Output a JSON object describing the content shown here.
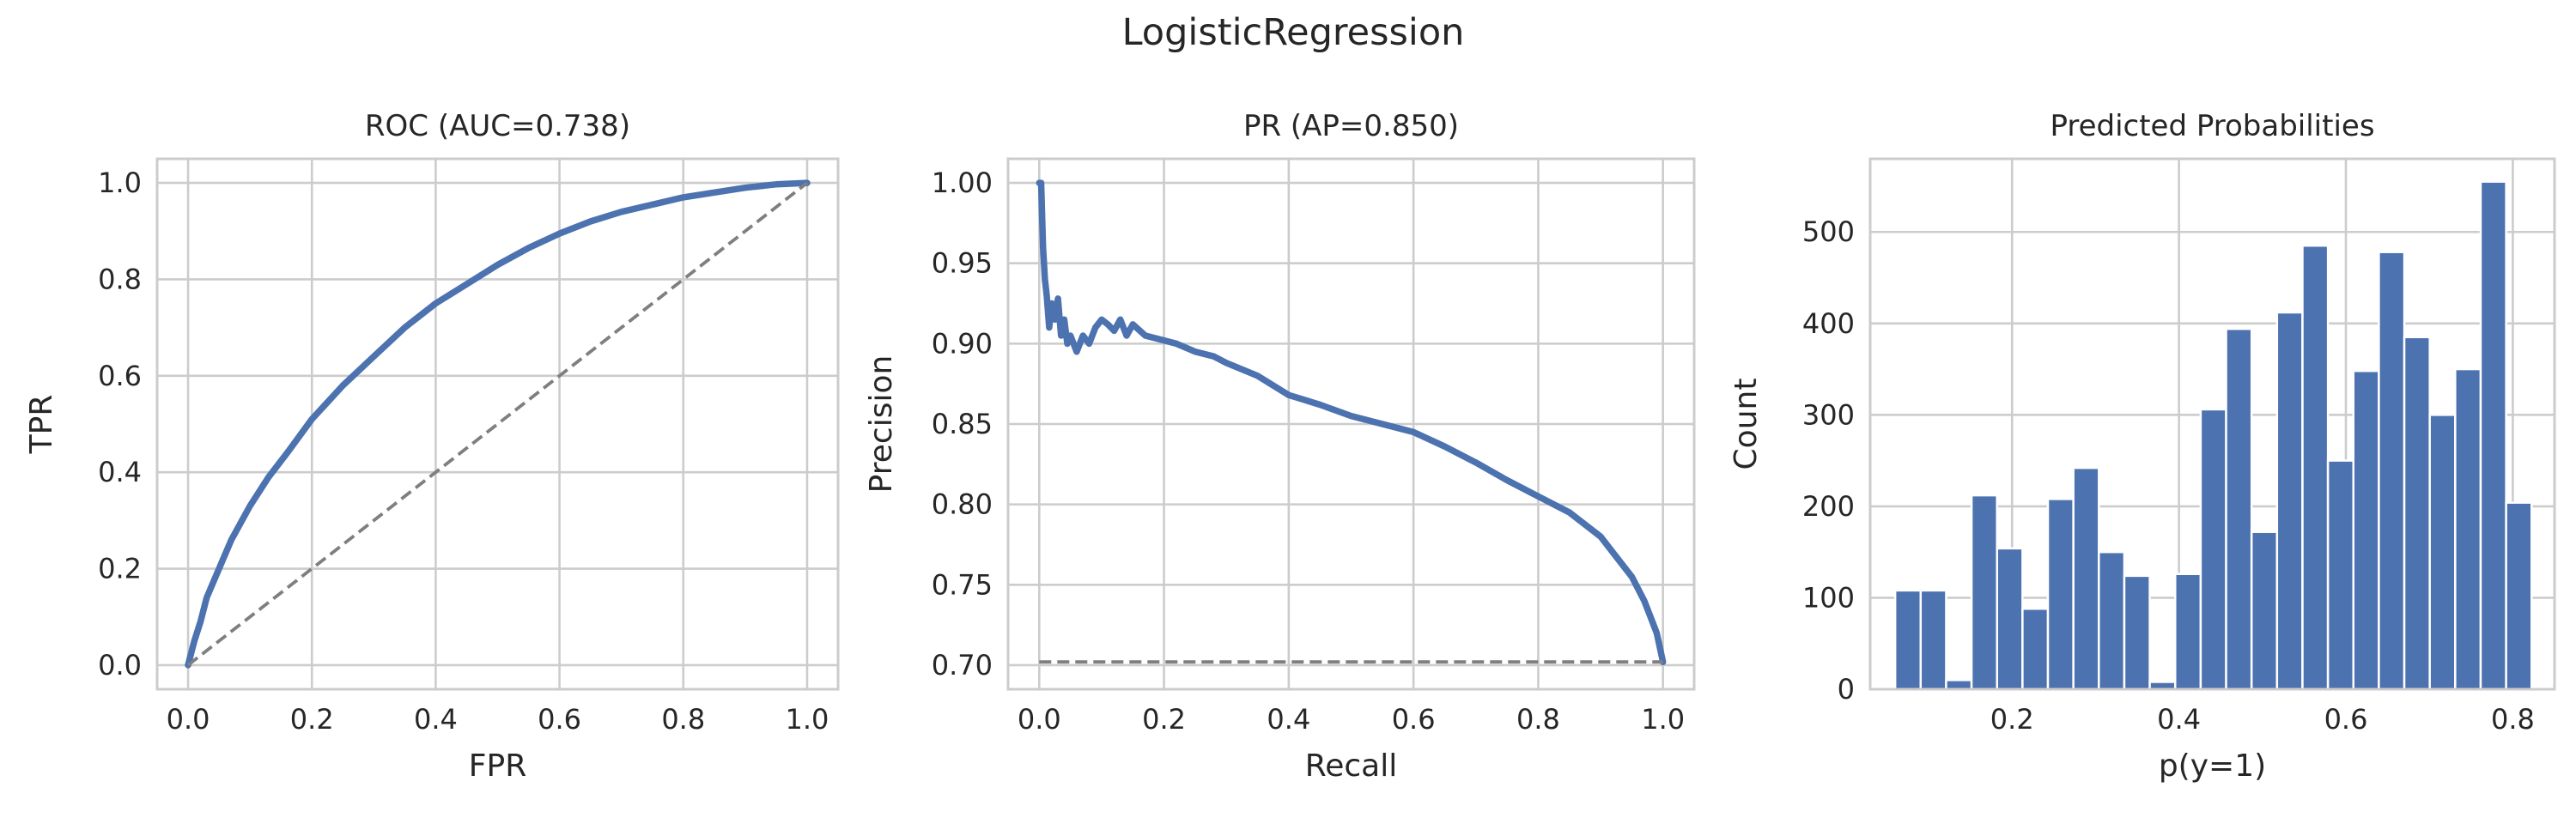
{
  "figure": {
    "suptitle": "LogisticRegression"
  },
  "chart_data": [
    {
      "type": "line",
      "title": "ROC (AUC=0.738)",
      "xlabel": "FPR",
      "ylabel": "TPR",
      "xlim": [
        -0.05,
        1.05
      ],
      "ylim": [
        -0.05,
        1.05
      ],
      "xticks": [
        0.0,
        0.2,
        0.4,
        0.6,
        0.8,
        1.0
      ],
      "yticks": [
        0.0,
        0.2,
        0.4,
        0.6,
        0.8,
        1.0
      ],
      "xtick_labels": [
        "0.0",
        "0.2",
        "0.4",
        "0.6",
        "0.8",
        "1.0"
      ],
      "ytick_labels": [
        "0.0",
        "0.2",
        "0.4",
        "0.6",
        "0.8",
        "1.0"
      ],
      "grid": true,
      "series": [
        {
          "style": "solid",
          "color": "#4c72b0",
          "x": [
            0.0,
            0.01,
            0.02,
            0.03,
            0.05,
            0.07,
            0.1,
            0.13,
            0.16,
            0.2,
            0.25,
            0.3,
            0.35,
            0.4,
            0.45,
            0.5,
            0.55,
            0.6,
            0.65,
            0.7,
            0.75,
            0.8,
            0.85,
            0.9,
            0.95,
            1.0
          ],
          "y": [
            0.0,
            0.05,
            0.09,
            0.14,
            0.2,
            0.26,
            0.33,
            0.39,
            0.44,
            0.51,
            0.58,
            0.64,
            0.7,
            0.75,
            0.79,
            0.83,
            0.865,
            0.895,
            0.92,
            0.94,
            0.955,
            0.97,
            0.98,
            0.99,
            0.997,
            1.0
          ]
        },
        {
          "style": "dashed",
          "color": "#7f7f7f",
          "x": [
            0.0,
            1.0
          ],
          "y": [
            0.0,
            1.0
          ]
        }
      ]
    },
    {
      "type": "line",
      "title": "PR (AP=0.850)",
      "xlabel": "Recall",
      "ylabel": "Precision",
      "xlim": [
        -0.05,
        1.05
      ],
      "ylim": [
        0.685,
        1.015
      ],
      "xticks": [
        0.0,
        0.2,
        0.4,
        0.6,
        0.8,
        1.0
      ],
      "yticks": [
        0.7,
        0.75,
        0.8,
        0.85,
        0.9,
        0.95,
        1.0
      ],
      "xtick_labels": [
        "0.0",
        "0.2",
        "0.4",
        "0.6",
        "0.8",
        "1.0"
      ],
      "ytick_labels": [
        "0.70",
        "0.75",
        "0.80",
        "0.85",
        "0.90",
        "0.95",
        "1.00"
      ],
      "grid": true,
      "series": [
        {
          "style": "solid",
          "color": "#4c72b0",
          "x": [
            0.0,
            0.003,
            0.006,
            0.009,
            0.012,
            0.016,
            0.02,
            0.025,
            0.03,
            0.035,
            0.04,
            0.045,
            0.05,
            0.06,
            0.07,
            0.08,
            0.09,
            0.1,
            0.11,
            0.12,
            0.13,
            0.14,
            0.15,
            0.17,
            0.2,
            0.22,
            0.25,
            0.28,
            0.3,
            0.35,
            0.4,
            0.45,
            0.5,
            0.55,
            0.6,
            0.65,
            0.7,
            0.75,
            0.8,
            0.85,
            0.9,
            0.93,
            0.95,
            0.97,
            0.98,
            0.99,
            1.0
          ],
          "y": [
            1.0,
            1.0,
            0.96,
            0.94,
            0.93,
            0.91,
            0.925,
            0.915,
            0.928,
            0.905,
            0.915,
            0.9,
            0.905,
            0.895,
            0.905,
            0.9,
            0.91,
            0.915,
            0.912,
            0.908,
            0.915,
            0.905,
            0.912,
            0.905,
            0.902,
            0.9,
            0.895,
            0.892,
            0.888,
            0.88,
            0.868,
            0.862,
            0.855,
            0.85,
            0.845,
            0.836,
            0.826,
            0.815,
            0.805,
            0.795,
            0.78,
            0.765,
            0.755,
            0.74,
            0.73,
            0.72,
            0.702
          ]
        },
        {
          "style": "dashed",
          "color": "#7f7f7f",
          "x": [
            0.0,
            1.0
          ],
          "y": [
            0.702,
            0.702
          ]
        }
      ]
    },
    {
      "type": "bar",
      "title": "Predicted Probabilities",
      "xlabel": "p(y=1)",
      "ylabel": "Count",
      "xlim": [
        0.03,
        0.85
      ],
      "ylim": [
        0,
        580
      ],
      "xticks": [
        0.2,
        0.4,
        0.6,
        0.8
      ],
      "yticks": [
        0,
        100,
        200,
        300,
        400,
        500
      ],
      "xtick_labels": [
        "0.2",
        "0.4",
        "0.6",
        "0.8"
      ],
      "ytick_labels": [
        "0",
        "100",
        "200",
        "300",
        "400",
        "500"
      ],
      "grid": true,
      "bin_edges": [
        0.06,
        0.0905,
        0.121,
        0.1515,
        0.182,
        0.2125,
        0.243,
        0.2735,
        0.304,
        0.3345,
        0.365,
        0.3955,
        0.426,
        0.4565,
        0.487,
        0.5175,
        0.548,
        0.5785,
        0.609,
        0.6395,
        0.67,
        0.7005,
        0.731,
        0.7615,
        0.792,
        0.8225
      ],
      "values": [
        108,
        108,
        10,
        212,
        154,
        88,
        208,
        242,
        150,
        124,
        8,
        126,
        306,
        394,
        172,
        412,
        485,
        250,
        348,
        478,
        385,
        300,
        350,
        555,
        204
      ],
      "color": "#4c72b0"
    }
  ]
}
